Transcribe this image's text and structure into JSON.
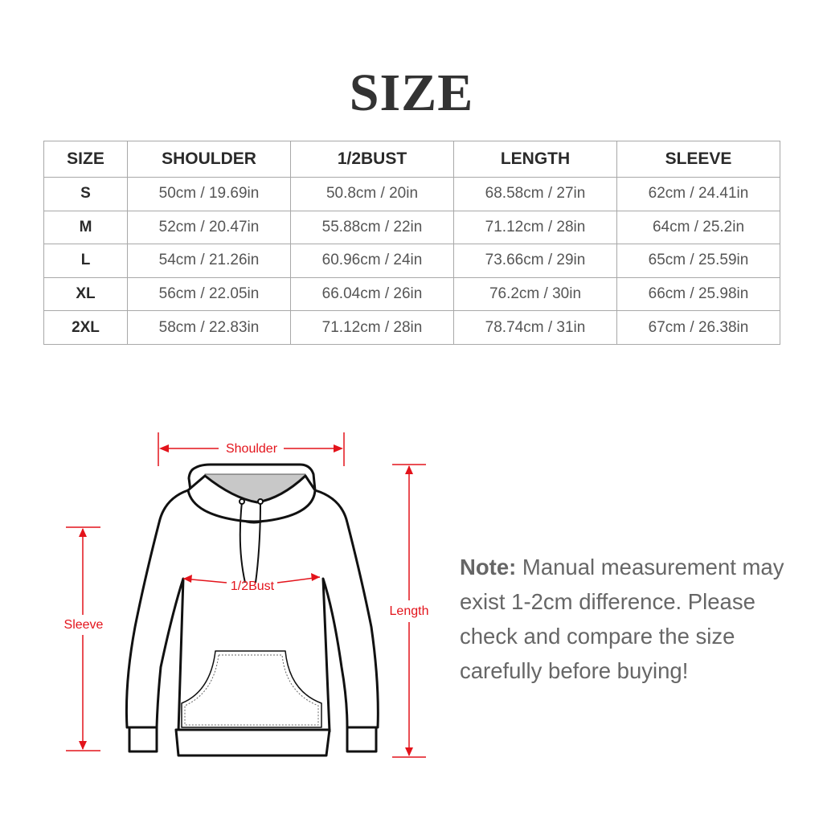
{
  "title": "SIZE",
  "table": {
    "headers": [
      "SIZE",
      "SHOULDER",
      "1/2BUST",
      "LENGTH",
      "SLEEVE"
    ],
    "rows": [
      [
        "S",
        "50cm / 19.69in",
        "50.8cm / 20in",
        "68.58cm / 27in",
        "62cm / 24.41in"
      ],
      [
        "M",
        "52cm / 20.47in",
        "55.88cm / 22in",
        "71.12cm / 28in",
        "64cm / 25.2in"
      ],
      [
        "L",
        "54cm / 21.26in",
        "60.96cm / 24in",
        "73.66cm / 29in",
        "65cm / 25.59in"
      ],
      [
        "XL",
        "56cm / 22.05in",
        "66.04cm / 26in",
        "76.2cm / 30in",
        "66cm / 25.98in"
      ],
      [
        "2XL",
        "58cm / 22.83in",
        "71.12cm / 28in",
        "78.74cm / 31in",
        "67cm / 26.38in"
      ]
    ]
  },
  "diagram": {
    "labels": {
      "shoulder": "Shoulder",
      "bust": "1/2Bust",
      "sleeve": "Sleeve",
      "length": "Length"
    },
    "measure_color": "#e3131b"
  },
  "note": {
    "label": "Note:",
    "text": " Manual measurement may exist 1-2cm difference. Please check and compare the size carefully before buying!"
  }
}
